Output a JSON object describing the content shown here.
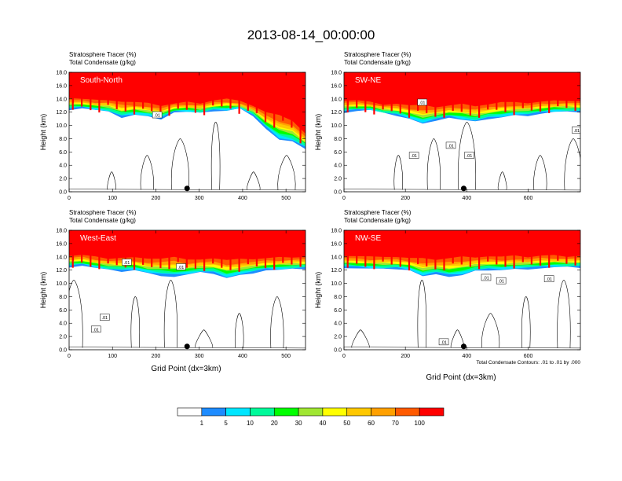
{
  "chart_data": {
    "type": "heatmap",
    "title": "2013-08-14_00:00:00",
    "field_label": "Stratosphere Tracer",
    "field_units": "(%)",
    "contour_label": "Total Condensate",
    "contour_units": "(g/kg)",
    "contour_note": "Total Condensate Contours: .01 to .01 by .000",
    "contour_level_label": ".01",
    "xlabel": "Grid Point (dx=3km)",
    "ylabel": "Height (km)",
    "ylim": [
      0,
      18
    ],
    "yticks": [
      "0.0",
      "2.0",
      "4.0",
      "6.0",
      "8.0",
      "10.0",
      "12.0",
      "14.0",
      "16.0",
      "18.0"
    ],
    "levels": [
      "1",
      "5",
      "10",
      "20",
      "30",
      "40",
      "50",
      "60",
      "70",
      "100"
    ],
    "colors": [
      "#ffffff",
      "#1e8cff",
      "#00e6ff",
      "#00fa9a",
      "#00ff00",
      "#a0e632",
      "#ffff00",
      "#ffc800",
      "#ffa000",
      "#ff5a00",
      "#ff0000"
    ],
    "panels": [
      {
        "id": "south-north",
        "label": "South-North",
        "xlim": [
          0,
          545
        ],
        "xticks": [
          0,
          100,
          200,
          300,
          400,
          500
        ],
        "marker_x": 272,
        "tracer_top": [
          14.2,
          14.0,
          13.8,
          13.9,
          13.6,
          13.5,
          13.3,
          13.0,
          13.3,
          13.5,
          13.4,
          13.8,
          14.0,
          13.6,
          13.0,
          12.0,
          11.5,
          10.8,
          8.8
        ],
        "tracer_bottom": [
          12.4,
          12.6,
          12.3,
          12.0,
          11.2,
          11.6,
          11.3,
          11.0,
          12.0,
          12.0,
          11.8,
          12.2,
          12.2,
          12.5,
          11.5,
          9.5,
          7.8,
          7.5,
          6.5
        ],
        "contour_labels": [
          {
            "x": 203,
            "y": 11.6
          }
        ]
      },
      {
        "id": "sw-ne",
        "label": "SW-NE",
        "xlim": [
          0,
          770
        ],
        "xticks": [
          0,
          200,
          400,
          600
        ],
        "marker_x": 390,
        "tracer_top": [
          13.8,
          13.8,
          13.5,
          13.2,
          13.3,
          13.0,
          13.0,
          12.8,
          13.0,
          13.2,
          13.0,
          13.2,
          13.5,
          13.4,
          13.4,
          13.6,
          13.7,
          13.8,
          13.7
        ],
        "tracer_bottom": [
          12.0,
          12.2,
          12.3,
          11.8,
          11.5,
          11.0,
          10.2,
          10.8,
          11.2,
          10.8,
          10.5,
          11.0,
          11.2,
          11.5,
          11.5,
          11.8,
          12.0,
          12.0,
          12.0
        ],
        "contour_labels": [
          {
            "x": 255,
            "y": 13.5
          },
          {
            "x": 348,
            "y": 7.0
          },
          {
            "x": 228,
            "y": 5.5
          },
          {
            "x": 408,
            "y": 5.5
          },
          {
            "x": 758,
            "y": 9.3
          }
        ]
      },
      {
        "id": "west-east",
        "label": "West-East",
        "xlim": [
          0,
          545
        ],
        "xticks": [
          0,
          100,
          200,
          300,
          400,
          500
        ],
        "marker_x": 272,
        "tracer_top": [
          14.2,
          14.3,
          14.0,
          13.8,
          13.9,
          13.9,
          13.6,
          13.8,
          14.0,
          13.5,
          13.7,
          13.8,
          13.5,
          13.6,
          13.7,
          13.8,
          13.9,
          14.0,
          14.0
        ],
        "tracer_bottom": [
          12.5,
          12.7,
          12.3,
          12.0,
          11.8,
          12.0,
          11.5,
          11.2,
          11.0,
          11.3,
          11.6,
          11.5,
          10.8,
          11.2,
          11.6,
          12.0,
          12.0,
          12.1,
          12.2
        ],
        "contour_labels": [
          {
            "x": 133,
            "y": 13.2
          },
          {
            "x": 258,
            "y": 12.5
          },
          {
            "x": 82,
            "y": 4.9
          },
          {
            "x": 62,
            "y": 3.1
          }
        ]
      },
      {
        "id": "nw-se",
        "label": "NW-SE",
        "xlim": [
          0,
          770
        ],
        "xticks": [
          0,
          200,
          400,
          600
        ],
        "marker_x": 390,
        "tracer_top": [
          14.2,
          14.1,
          14.0,
          14.1,
          14.0,
          13.8,
          13.7,
          13.6,
          13.8,
          14.0,
          14.0,
          14.1,
          14.0,
          14.1,
          14.0,
          14.2,
          14.2,
          14.1,
          14.2
        ],
        "tracer_bottom": [
          12.4,
          12.3,
          12.2,
          12.1,
          12.2,
          12.0,
          11.0,
          11.5,
          11.0,
          11.2,
          11.8,
          12.0,
          12.0,
          12.1,
          12.2,
          12.3,
          12.4,
          12.4,
          12.4
        ],
        "contour_labels": [
          {
            "x": 463,
            "y": 10.9
          },
          {
            "x": 512,
            "y": 10.4
          },
          {
            "x": 668,
            "y": 10.7
          },
          {
            "x": 325,
            "y": 1.2
          }
        ]
      }
    ]
  }
}
